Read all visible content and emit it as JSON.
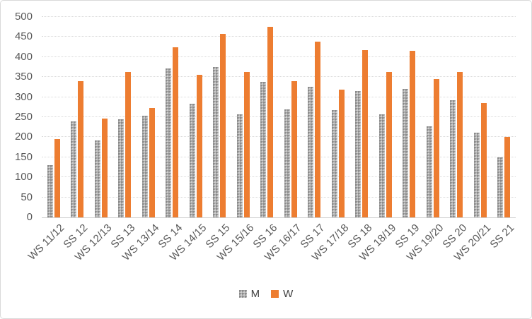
{
  "frame": {
    "background": "#ffffff",
    "border_color": "#d9d9d9"
  },
  "chart_data": {
    "type": "bar",
    "title": "",
    "xlabel": "",
    "ylabel": "",
    "categories": [
      "WS 11/12",
      "SS 12",
      "WS 12/13",
      "SS 13",
      "WS 13/14",
      "SS 14",
      "WS 14/15",
      "SS 15",
      "WS 15/16",
      "SS 16",
      "WS 16/17",
      "SS 17",
      "WS 17/18",
      "SS 18",
      "WS 18/19",
      "SS 19",
      "WS 19/20",
      "SS 20",
      "WS 20/21",
      "SS 21"
    ],
    "series": [
      {
        "name": "M",
        "color": "#a6a6a6",
        "fill": "speckle-pattern",
        "values": [
          130,
          240,
          192,
          245,
          254,
          371,
          284,
          375,
          257,
          338,
          270,
          326,
          268,
          316,
          257,
          320,
          228,
          292,
          211,
          150
        ]
      },
      {
        "name": "W",
        "color": "#ed7d31",
        "fill": "solid",
        "values": [
          195,
          340,
          246,
          362,
          273,
          425,
          355,
          457,
          363,
          475,
          340,
          438,
          318,
          418,
          363,
          415,
          345,
          363,
          285,
          200
        ]
      }
    ],
    "ylim": [
      0,
      500
    ],
    "yticks": [
      0,
      50,
      100,
      150,
      200,
      250,
      300,
      350,
      400,
      450,
      500
    ],
    "grid": "horizontal-dotted",
    "gridline_color": "#d9d9d9",
    "axis_tick_color": "#595959",
    "legend_position": "bottom-center",
    "legend_text_color": "#404040",
    "x_label_rotation_deg": -45
  }
}
